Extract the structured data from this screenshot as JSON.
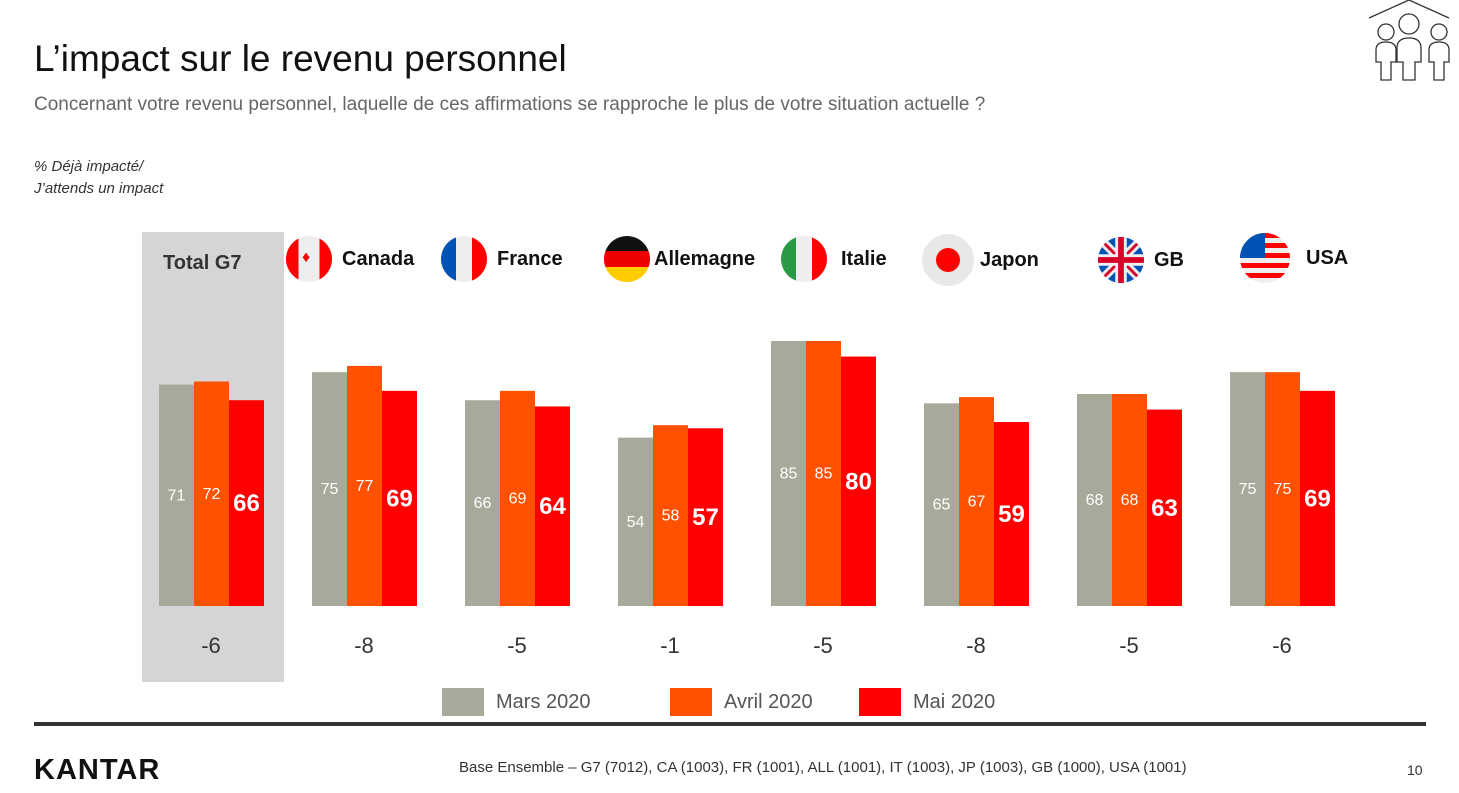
{
  "title": "L’impact sur le revenu personnel",
  "subtitle": "Concernant votre revenu personnel, laquelle de ces affirmations se rapproche le plus de votre situation actuelle ?",
  "note_line1": "%  Déjà impacté/",
  "note_line2": "J’attends un impact",
  "footer": {
    "logo": "KANTAR",
    "base": "Base Ensemble – G7 (7012), CA (1003), FR (1001), ALL (1001), IT (1003), JP (1003), GB (1000), USA (1001)",
    "page": "10"
  },
  "colors": {
    "Mars 2020": "#a9a99b",
    "Avril 2020": "#ff5100",
    "Mai 2020": "#ff0000",
    "highlight_bg": "#d5d5d5"
  },
  "chart_data": {
    "type": "bar",
    "categories": [
      "Total G7",
      "Canada",
      "France",
      "Allemagne",
      "Italie",
      "Japon",
      "GB",
      "USA"
    ],
    "series": [
      {
        "name": "Mars 2020",
        "values": [
          71,
          75,
          66,
          54,
          85,
          65,
          68,
          75
        ]
      },
      {
        "name": "Avril 2020",
        "values": [
          72,
          77,
          69,
          58,
          85,
          67,
          68,
          75
        ]
      },
      {
        "name": "Mai 2020",
        "values": [
          66,
          69,
          64,
          57,
          80,
          59,
          63,
          69
        ]
      }
    ],
    "differences": [
      "-6",
      "-8",
      "-5",
      "-1",
      "-5",
      "-8",
      "-5",
      "-6"
    ],
    "legend_placement": "bottom",
    "grid": false,
    "highlighted_category": "Total G7"
  }
}
